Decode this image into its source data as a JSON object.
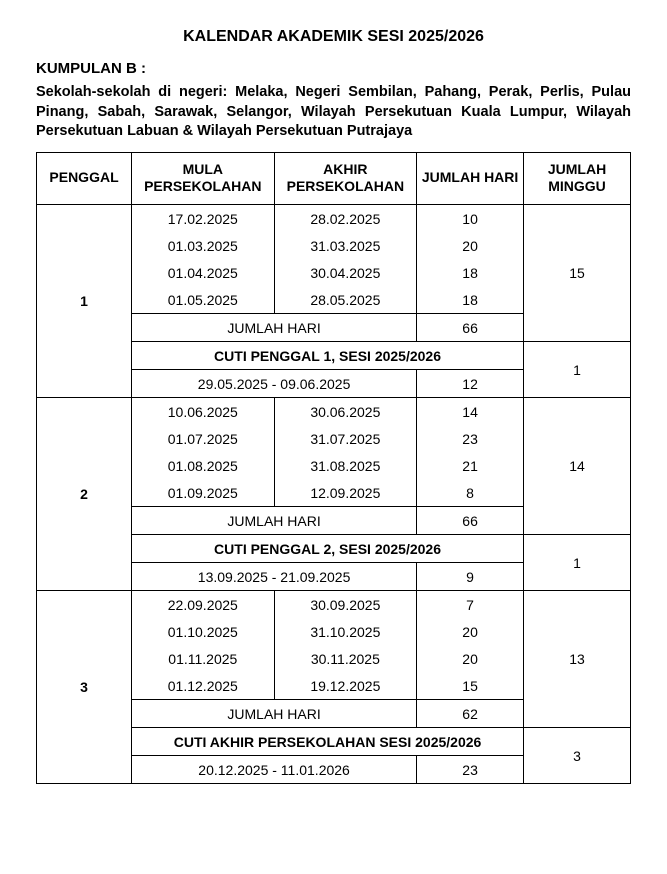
{
  "title": "KALENDAR AKADEMIK SESI 2025/2026",
  "kumpulan_label": "KUMPULAN B :",
  "desc": "Sekolah-sekolah di negeri: Melaka, Negeri Sembilan, Pahang, Perak, Perlis, Pulau Pinang, Sabah, Sarawak, Selangor, Wilayah Persekutuan Kuala Lumpur, Wilayah Persekutuan Labuan & Wilayah Persekutuan Putrajaya",
  "headers": {
    "penggal": "PENGGAL",
    "mula": "MULA PERSEKOLAHAN",
    "akhir": "AKHIR PERSEKOLAHAN",
    "hari": "JUMLAH HARI",
    "minggu": "JUMLAH MINGGU"
  },
  "jumlah_hari_label": "JUMLAH HARI",
  "terms": [
    {
      "name": "1",
      "rows": [
        {
          "mula": "17.02.2025",
          "akhir": "28.02.2025",
          "hari": "10"
        },
        {
          "mula": "01.03.2025",
          "akhir": "31.03.2025",
          "hari": "20"
        },
        {
          "mula": "01.04.2025",
          "akhir": "30.04.2025",
          "hari": "18"
        },
        {
          "mula": "01.05.2025",
          "akhir": "28.05.2025",
          "hari": "18"
        }
      ],
      "jumlah_hari": "66",
      "jumlah_minggu": "15",
      "cuti_title": "CUTI PENGGAL 1, SESI 2025/2026",
      "cuti_range": "29.05.2025 - 09.06.2025",
      "cuti_hari": "12",
      "cuti_minggu": "1"
    },
    {
      "name": "2",
      "rows": [
        {
          "mula": "10.06.2025",
          "akhir": "30.06.2025",
          "hari": "14"
        },
        {
          "mula": "01.07.2025",
          "akhir": "31.07.2025",
          "hari": "23"
        },
        {
          "mula": "01.08.2025",
          "akhir": "31.08.2025",
          "hari": "21"
        },
        {
          "mula": "01.09.2025",
          "akhir": "12.09.2025",
          "hari": "8"
        }
      ],
      "jumlah_hari": "66",
      "jumlah_minggu": "14",
      "cuti_title": "CUTI PENGGAL 2, SESI 2025/2026",
      "cuti_range": "13.09.2025 - 21.09.2025",
      "cuti_hari": "9",
      "cuti_minggu": "1"
    },
    {
      "name": "3",
      "rows": [
        {
          "mula": "22.09.2025",
          "akhir": "30.09.2025",
          "hari": "7"
        },
        {
          "mula": "01.10.2025",
          "akhir": "31.10.2025",
          "hari": "20"
        },
        {
          "mula": "01.11.2025",
          "akhir": "30.11.2025",
          "hari": "20"
        },
        {
          "mula": "01.12.2025",
          "akhir": "19.12.2025",
          "hari": "15"
        }
      ],
      "jumlah_hari": "62",
      "jumlah_minggu": "13",
      "cuti_title": "CUTI AKHIR PERSEKOLAHAN SESI 2025/2026",
      "cuti_range": "20.12.2025 - 11.01.2026",
      "cuti_hari": "23",
      "cuti_minggu": "3"
    }
  ]
}
